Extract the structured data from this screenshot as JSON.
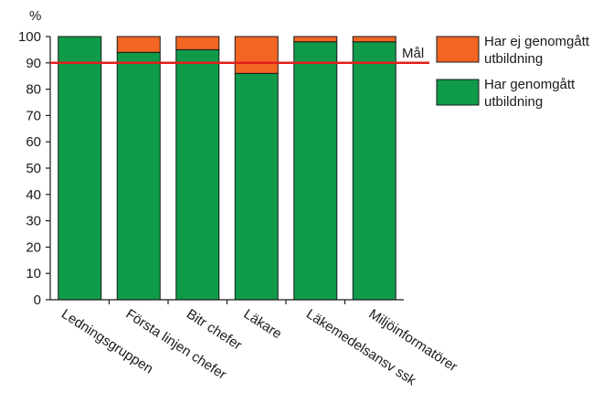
{
  "chart_data": {
    "type": "bar",
    "stacked": true,
    "ylabel": "%",
    "ylim": [
      0,
      100
    ],
    "yticks": [
      0,
      10,
      20,
      30,
      40,
      50,
      60,
      70,
      80,
      90,
      100
    ],
    "categories": [
      "Ledningsgruppen",
      "Första linjen chefer",
      "Bitr chefer",
      "Läkare",
      "Läkemedelsansv ssk",
      "Miljöinformatörer"
    ],
    "series": [
      {
        "name": "Har genomgått utbildning",
        "color": "#0f9b4a",
        "values": [
          100,
          94,
          95,
          86,
          98,
          98
        ]
      },
      {
        "name": "Har ej genomgått utbildning",
        "color": "#f26522",
        "values": [
          0,
          6,
          5,
          14,
          2,
          2
        ]
      }
    ],
    "target": {
      "label": "Mål",
      "value": 90,
      "color": "#e0201b"
    },
    "legend_position": "right"
  }
}
